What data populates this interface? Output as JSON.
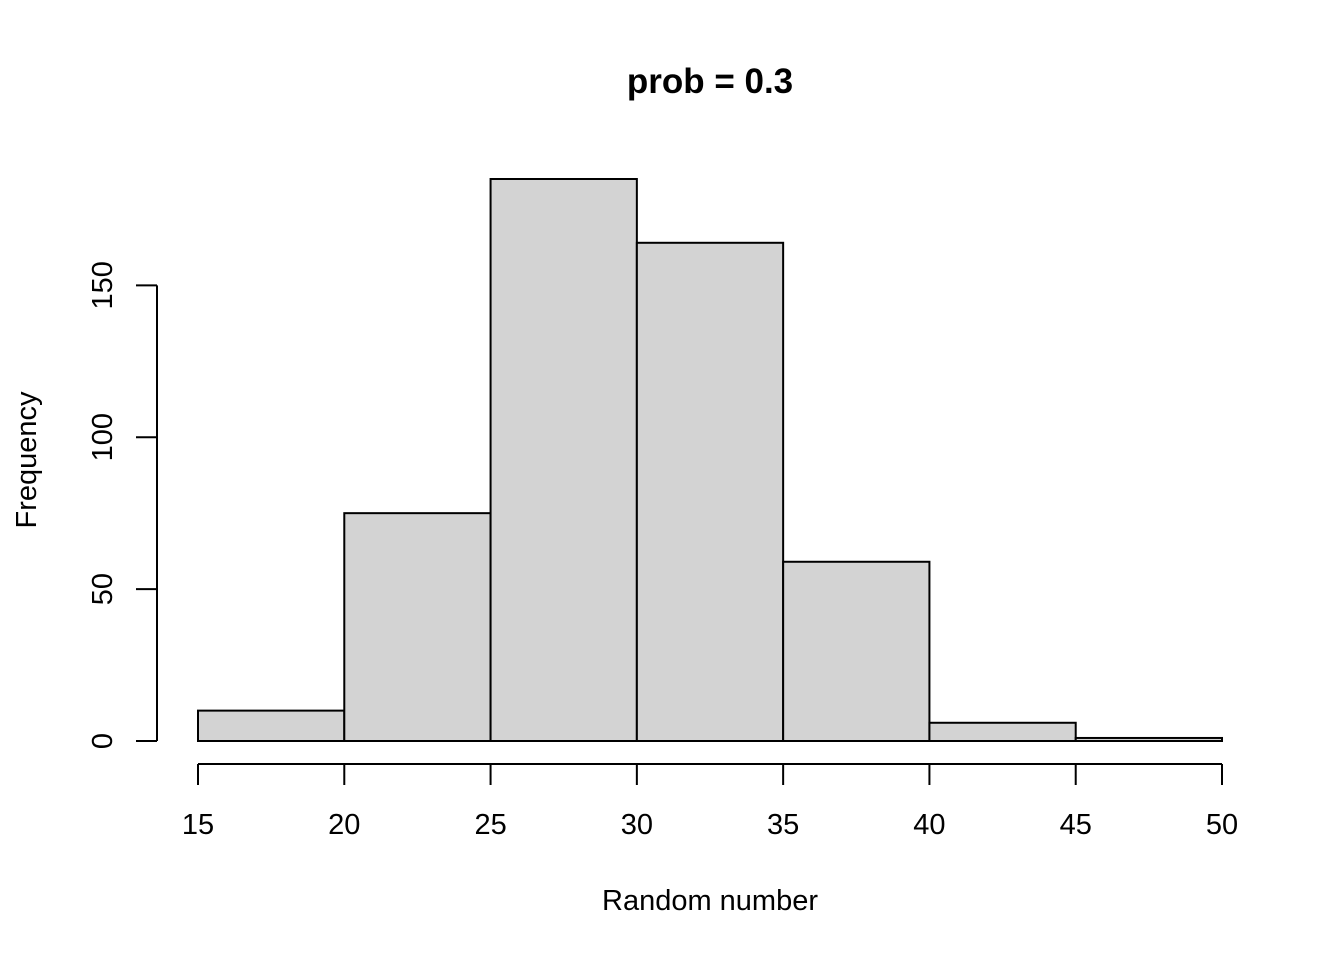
{
  "chart_data": {
    "type": "bar",
    "title": "prob = 0.3",
    "xlabel": "Random number",
    "ylabel": "Frequency",
    "bins": [
      {
        "start": 15,
        "end": 20,
        "count": 10
      },
      {
        "start": 20,
        "end": 25,
        "count": 75
      },
      {
        "start": 25,
        "end": 30,
        "count": 185
      },
      {
        "start": 30,
        "end": 35,
        "count": 164
      },
      {
        "start": 35,
        "end": 40,
        "count": 59
      },
      {
        "start": 40,
        "end": 45,
        "count": 6
      },
      {
        "start": 45,
        "end": 50,
        "count": 1
      }
    ],
    "xlim": [
      15,
      50
    ],
    "ylim": [
      0,
      185
    ],
    "xticks": [
      "15",
      "20",
      "25",
      "30",
      "35",
      "40",
      "45",
      "50"
    ],
    "yticks": [
      "0",
      "50",
      "100",
      "150"
    ],
    "grid": false,
    "bar_color": "#d3d3d3"
  }
}
